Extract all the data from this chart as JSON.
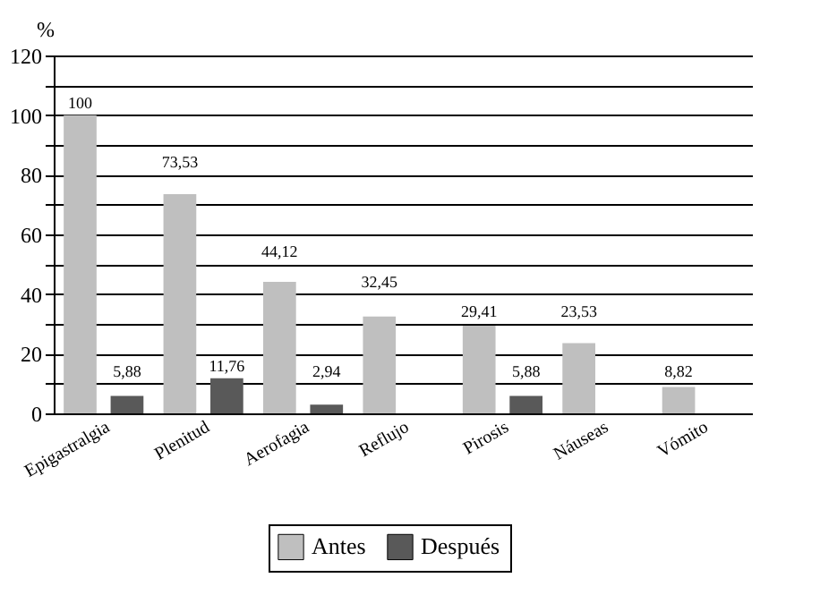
{
  "chart_data": {
    "type": "bar",
    "ylabel": "%",
    "categories": [
      "Epigastralgia",
      "Plenitud",
      "Aerofagia",
      "Reflujo",
      "Pirosis",
      "Náuseas",
      "Vómito"
    ],
    "series": [
      {
        "name": "Antes",
        "color": "#bfbfbf",
        "values": [
          100,
          73.53,
          44.12,
          32.45,
          29.41,
          23.53,
          8.82
        ],
        "value_labels": [
          "100",
          "73,53",
          "44,12",
          "32,45",
          "29,41",
          "23,53",
          "8,82"
        ]
      },
      {
        "name": "Después",
        "color": "#595959",
        "values": [
          5.88,
          11.76,
          2.94,
          null,
          5.88,
          null,
          null
        ],
        "value_labels": [
          "5,88",
          "11,76",
          "2,94",
          null,
          "5,88",
          null,
          null
        ]
      }
    ],
    "ylim": [
      0,
      120
    ],
    "yticks": [
      0,
      {
        "value": 10,
        "label": null
      },
      20,
      {
        "value": 30,
        "label": null
      },
      40,
      {
        "value": 50,
        "label": null
      },
      60,
      {
        "value": 70,
        "label": null
      },
      80,
      {
        "value": 90,
        "label": null
      },
      100,
      {
        "value": 110,
        "label": null
      },
      120
    ],
    "grid": "y",
    "legend": "bottom"
  }
}
